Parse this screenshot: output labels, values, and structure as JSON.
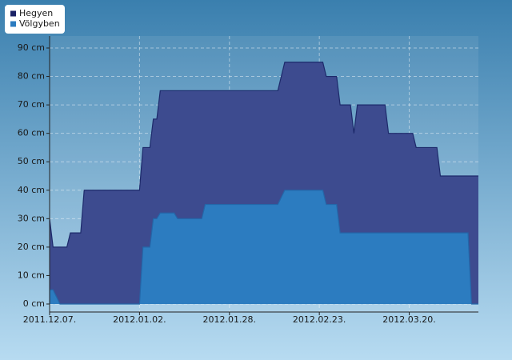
{
  "chart_data": {
    "type": "area",
    "x": [
      "2011-12-07",
      "2011-12-08",
      "2011-12-10",
      "2011-12-12",
      "2011-12-13",
      "2011-12-16",
      "2011-12-17",
      "2012-01-02",
      "2012-01-03",
      "2012-01-05",
      "2012-01-06",
      "2012-01-07",
      "2012-01-08",
      "2012-01-12",
      "2012-01-13",
      "2012-01-20",
      "2012-01-21",
      "2012-02-11",
      "2012-02-13",
      "2012-02-24",
      "2012-02-25",
      "2012-02-28",
      "2012-02-29",
      "2012-03-03",
      "2012-03-04",
      "2012-03-05",
      "2012-03-13",
      "2012-03-14",
      "2012-03-21",
      "2012-03-22",
      "2012-03-28",
      "2012-03-29",
      "2012-04-06",
      "2012-04-07",
      "2012-04-09"
    ],
    "series": [
      {
        "name": "Hegyen",
        "color": "#3d4b8f",
        "values": [
          30,
          20,
          20,
          20,
          25,
          25,
          40,
          40,
          55,
          55,
          65,
          65,
          75,
          75,
          75,
          75,
          75,
          75,
          85,
          85,
          80,
          80,
          70,
          70,
          60,
          70,
          70,
          60,
          60,
          55,
          55,
          45,
          45,
          45,
          45
        ]
      },
      {
        "name": "Völgyben",
        "color": "#2c7cc0",
        "values": [
          5,
          5,
          0,
          0,
          0,
          0,
          0,
          0,
          20,
          20,
          30,
          30,
          32,
          32,
          30,
          30,
          35,
          35,
          40,
          40,
          35,
          35,
          25,
          25,
          25,
          25,
          25,
          25,
          25,
          25,
          25,
          25,
          25,
          0,
          0
        ]
      }
    ],
    "xlim": [
      "2011-12-07",
      "2012-04-09"
    ],
    "xticks": [
      {
        "value": "2011-12-07",
        "label": "2011.12.07."
      },
      {
        "value": "2012-01-02",
        "label": "2012.01.02."
      },
      {
        "value": "2012-01-28",
        "label": "2012.01.28."
      },
      {
        "value": "2012-02-23",
        "label": "2012.02.23."
      },
      {
        "value": "2012-03-20",
        "label": "2012.03.20."
      }
    ],
    "ylim": [
      0,
      90
    ],
    "yticks": [
      {
        "value": 0,
        "label": "0 cm"
      },
      {
        "value": 10,
        "label": "10 cm"
      },
      {
        "value": 20,
        "label": "20 cm"
      },
      {
        "value": 30,
        "label": "30 cm"
      },
      {
        "value": 40,
        "label": "40 cm"
      },
      {
        "value": 50,
        "label": "50 cm"
      },
      {
        "value": 60,
        "label": "60 cm"
      },
      {
        "value": 70,
        "label": "70 cm"
      },
      {
        "value": 80,
        "label": "80 cm"
      },
      {
        "value": 90,
        "label": "90 cm"
      }
    ],
    "grid": true,
    "legend": "top-left"
  }
}
